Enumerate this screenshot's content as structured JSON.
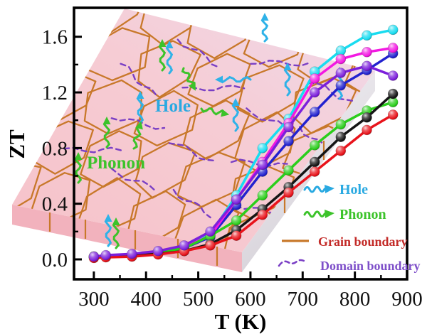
{
  "figure": {
    "xlabel": "T (K)",
    "ylabel": "ZT",
    "slab_labels": {
      "hole": "Hole",
      "phonon": "Phonon"
    }
  },
  "legend": {
    "items": [
      {
        "label": "Hole",
        "color": "#29a9e1",
        "icon": "hole-wavy-arrow"
      },
      {
        "label": "Phonon",
        "color": "#3cc32a",
        "icon": "phonon-wavy-arrow"
      },
      {
        "label": "Grain boundary",
        "color": "#c32b28",
        "icon": "grain-solid-line",
        "line_color": "#c8782a"
      },
      {
        "label": "Domain boundary",
        "color": "#7e4fc9",
        "icon": "domain-dashed-line",
        "line_color": "#7a3fc5"
      }
    ]
  },
  "chart_data": {
    "type": "line",
    "title": "",
    "xlabel": "T (K)",
    "ylabel": "ZT",
    "xlim": [
      262,
      900
    ],
    "ylim": [
      -0.143,
      1.808
    ],
    "x_ticks": [
      300,
      400,
      500,
      600,
      700,
      800,
      900
    ],
    "y_ticks": [
      0.0,
      0.4,
      0.8,
      1.2,
      1.6
    ],
    "x_minor_step": 50,
    "y_minor_step": 0.2,
    "grid": false,
    "legend_position": "lower right",
    "x": [
      300,
      323,
      373,
      423,
      473,
      523,
      573,
      623,
      673,
      723,
      773,
      823,
      873
    ],
    "series": [
      {
        "name": "cyan",
        "color": "#18dcf0",
        "values": [
          0.02,
          0.02,
          0.03,
          0.05,
          0.09,
          0.18,
          0.46,
          0.8,
          1.01,
          1.35,
          1.5,
          1.61,
          1.65
        ]
      },
      {
        "name": "blue",
        "color": "#2222cf",
        "values": [
          0.02,
          0.02,
          0.03,
          0.05,
          0.08,
          0.16,
          0.39,
          0.63,
          0.85,
          1.06,
          1.25,
          1.36,
          1.48
        ]
      },
      {
        "name": "magenta",
        "color": "#f318e2",
        "values": [
          0.02,
          0.02,
          0.03,
          0.05,
          0.09,
          0.17,
          0.43,
          0.7,
          0.98,
          1.3,
          1.44,
          1.49,
          1.52
        ]
      },
      {
        "name": "green",
        "color": "#2bce1c",
        "values": [
          0.02,
          0.02,
          0.03,
          0.05,
          0.08,
          0.17,
          0.28,
          0.46,
          0.64,
          0.82,
          0.97,
          1.07,
          1.13
        ]
      },
      {
        "name": "black",
        "color": "#151515",
        "values": [
          0.015,
          0.02,
          0.03,
          0.04,
          0.06,
          0.11,
          0.21,
          0.36,
          0.52,
          0.7,
          0.88,
          1.02,
          1.19
        ]
      },
      {
        "name": "red",
        "color": "#e8131b",
        "values": [
          0.01,
          0.015,
          0.02,
          0.035,
          0.06,
          0.1,
          0.17,
          0.32,
          0.48,
          0.63,
          0.78,
          0.93,
          1.04
        ]
      },
      {
        "name": "violet",
        "color": "#7c1fdb",
        "values": [
          0.02,
          0.03,
          0.04,
          0.06,
          0.1,
          0.2,
          0.43,
          0.68,
          0.95,
          1.2,
          1.34,
          1.39,
          1.32
        ]
      }
    ]
  }
}
